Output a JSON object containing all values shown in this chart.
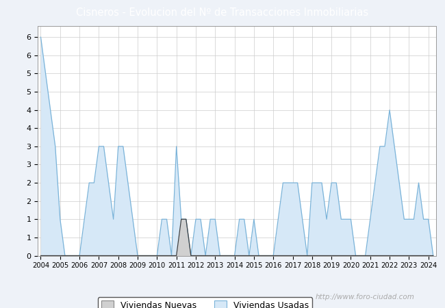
{
  "title": "Cisneros - Evolucion del Nº de Transacciones Inmobiliarias",
  "legend_labels": [
    "Viviendas Nuevas",
    "Viviendas Usadas"
  ],
  "header_color": "#4472c4",
  "area_color_nuevas": "#d0d0d0",
  "area_color_usadas": "#d6e8f7",
  "line_color_nuevas": "#404040",
  "line_color_usadas": "#7ab3d9",
  "background_color": "#eef2f8",
  "plot_bg": "#ffffff",
  "url_text": "http://www.foro-ciudad.com",
  "start_year": 2004,
  "end_year": 2024,
  "ylim": [
    0,
    6.3
  ],
  "ytick_positions": [
    0,
    0.5,
    1,
    1.5,
    2,
    2.5,
    3,
    3.5,
    4,
    4.5,
    5,
    5.5,
    6
  ],
  "ytick_labels": [
    "0",
    "1",
    "1",
    "2",
    "2",
    "3",
    "3",
    "4",
    "4",
    "5",
    "5",
    "6",
    "6"
  ],
  "usadas_by_quarter": [
    6,
    5,
    4,
    3,
    1,
    0,
    0,
    0,
    0,
    1,
    2,
    2,
    3,
    3,
    2,
    1,
    3,
    3,
    2,
    1,
    0,
    0,
    0,
    0,
    0,
    1,
    1,
    0,
    3,
    1,
    1,
    0,
    1,
    1,
    0,
    1,
    1,
    0,
    0,
    0,
    0,
    1,
    1,
    0,
    1,
    0,
    0,
    0,
    0,
    1,
    2,
    2,
    2,
    2,
    1,
    0,
    2,
    2,
    2,
    1,
    2,
    2,
    1,
    1,
    1,
    0,
    0,
    0,
    1,
    2,
    3,
    3,
    4,
    3,
    2,
    1,
    1,
    1,
    2,
    1,
    1,
    0
  ],
  "nuevas_by_quarter": [
    0,
    0,
    0,
    0,
    0,
    0,
    0,
    0,
    0,
    0,
    0,
    0,
    0,
    0,
    0,
    0,
    0,
    0,
    0,
    0,
    0,
    0,
    0,
    0,
    0,
    0,
    0,
    0,
    0,
    1,
    1,
    0,
    0,
    0,
    0,
    0,
    0,
    0,
    0,
    0,
    0,
    0,
    0,
    0,
    0,
    0,
    0,
    0,
    0,
    0,
    0,
    0,
    0,
    0,
    0,
    0,
    0,
    0,
    0,
    0,
    0,
    0,
    0,
    0,
    0,
    0,
    0,
    0,
    0,
    0,
    0,
    0,
    0,
    0,
    0,
    0,
    0,
    0,
    0,
    0,
    0,
    0
  ]
}
